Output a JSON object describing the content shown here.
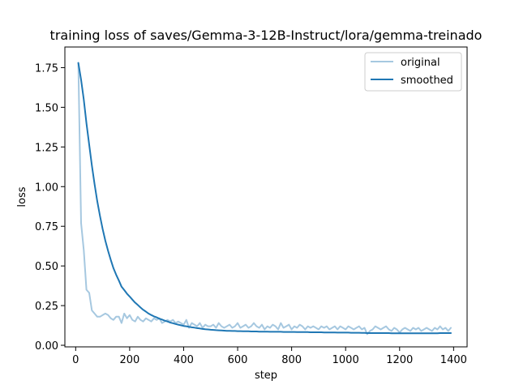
{
  "chart_data": {
    "type": "line",
    "title": "training loss of saves/Gemma-3-12B-Instruct/lora/gemma-treinado",
    "xlabel": "step",
    "ylabel": "loss",
    "xlim": [
      -40,
      1450
    ],
    "ylim": [
      -0.01,
      1.88
    ],
    "xticks": [
      0,
      200,
      400,
      600,
      800,
      1000,
      1200,
      1400
    ],
    "xtick_labels": [
      "0",
      "200",
      "400",
      "600",
      "800",
      "1000",
      "1200",
      "1400"
    ],
    "yticks": [
      0.0,
      0.25,
      0.5,
      0.75,
      1.0,
      1.25,
      1.5,
      1.75
    ],
    "ytick_labels": [
      "0.00",
      "0.25",
      "0.50",
      "0.75",
      "1.00",
      "1.25",
      "1.50",
      "1.75"
    ],
    "grid": false,
    "legend_position": "top-right",
    "series": [
      {
        "name": "original",
        "color": "#a6c8e0",
        "x": [
          10,
          20,
          30,
          40,
          50,
          60,
          70,
          80,
          90,
          100,
          110,
          120,
          130,
          140,
          150,
          160,
          170,
          180,
          190,
          200,
          210,
          220,
          230,
          240,
          250,
          260,
          270,
          280,
          290,
          300,
          310,
          320,
          330,
          340,
          350,
          360,
          370,
          380,
          390,
          400,
          410,
          420,
          430,
          440,
          450,
          460,
          470,
          480,
          490,
          500,
          510,
          520,
          530,
          540,
          550,
          560,
          570,
          580,
          590,
          600,
          610,
          620,
          630,
          640,
          650,
          660,
          670,
          680,
          690,
          700,
          710,
          720,
          730,
          740,
          750,
          760,
          770,
          780,
          790,
          800,
          810,
          820,
          830,
          840,
          850,
          860,
          870,
          880,
          890,
          900,
          910,
          920,
          930,
          940,
          950,
          960,
          970,
          980,
          990,
          1000,
          1010,
          1020,
          1030,
          1040,
          1050,
          1060,
          1070,
          1080,
          1090,
          1100,
          1110,
          1120,
          1130,
          1140,
          1150,
          1160,
          1170,
          1180,
          1190,
          1200,
          1210,
          1220,
          1230,
          1240,
          1250,
          1260,
          1270,
          1280,
          1290,
          1300,
          1310,
          1320,
          1330,
          1340,
          1350,
          1360,
          1370,
          1380,
          1390
        ],
        "values": [
          1.78,
          0.77,
          0.6,
          0.35,
          0.33,
          0.22,
          0.2,
          0.18,
          0.18,
          0.19,
          0.2,
          0.19,
          0.17,
          0.16,
          0.18,
          0.18,
          0.14,
          0.2,
          0.17,
          0.19,
          0.16,
          0.15,
          0.18,
          0.16,
          0.15,
          0.17,
          0.16,
          0.15,
          0.17,
          0.16,
          0.17,
          0.14,
          0.15,
          0.16,
          0.15,
          0.16,
          0.14,
          0.15,
          0.14,
          0.13,
          0.16,
          0.11,
          0.14,
          0.13,
          0.12,
          0.14,
          0.11,
          0.13,
          0.12,
          0.12,
          0.13,
          0.11,
          0.14,
          0.12,
          0.11,
          0.12,
          0.13,
          0.11,
          0.12,
          0.14,
          0.11,
          0.12,
          0.13,
          0.11,
          0.12,
          0.14,
          0.12,
          0.11,
          0.13,
          0.1,
          0.12,
          0.11,
          0.13,
          0.12,
          0.1,
          0.14,
          0.11,
          0.12,
          0.13,
          0.1,
          0.12,
          0.11,
          0.13,
          0.12,
          0.1,
          0.12,
          0.11,
          0.12,
          0.11,
          0.1,
          0.12,
          0.11,
          0.12,
          0.1,
          0.11,
          0.12,
          0.1,
          0.12,
          0.11,
          0.1,
          0.12,
          0.11,
          0.1,
          0.11,
          0.12,
          0.1,
          0.11,
          0.07,
          0.09,
          0.1,
          0.12,
          0.11,
          0.1,
          0.11,
          0.12,
          0.1,
          0.09,
          0.11,
          0.1,
          0.08,
          0.1,
          0.11,
          0.1,
          0.09,
          0.11,
          0.1,
          0.11,
          0.09,
          0.1,
          0.11,
          0.1,
          0.09,
          0.11,
          0.1,
          0.12,
          0.1,
          0.11,
          0.09,
          0.11
        ]
      },
      {
        "name": "smoothed",
        "color": "#1f77b4",
        "x": [
          10,
          20,
          30,
          40,
          50,
          60,
          70,
          80,
          90,
          100,
          110,
          120,
          130,
          140,
          150,
          160,
          170,
          180,
          190,
          200,
          210,
          220,
          230,
          240,
          250,
          260,
          270,
          280,
          290,
          300,
          310,
          320,
          330,
          340,
          350,
          360,
          370,
          380,
          390,
          400,
          410,
          420,
          430,
          440,
          450,
          460,
          470,
          480,
          490,
          500,
          510,
          520,
          530,
          540,
          550,
          560,
          570,
          580,
          590,
          600,
          610,
          620,
          630,
          640,
          650,
          660,
          670,
          680,
          690,
          700,
          710,
          720,
          730,
          740,
          750,
          760,
          770,
          780,
          790,
          800,
          810,
          820,
          830,
          840,
          850,
          860,
          870,
          880,
          890,
          900,
          910,
          920,
          930,
          940,
          950,
          960,
          970,
          980,
          990,
          1000,
          1010,
          1020,
          1030,
          1040,
          1050,
          1060,
          1070,
          1080,
          1090,
          1100,
          1110,
          1120,
          1130,
          1140,
          1150,
          1160,
          1170,
          1180,
          1190,
          1200,
          1210,
          1220,
          1230,
          1240,
          1250,
          1260,
          1270,
          1280,
          1290,
          1300,
          1310,
          1320,
          1330,
          1340,
          1350,
          1360,
          1370,
          1380,
          1390
        ],
        "values": [
          1.78,
          1.673,
          1.549,
          1.4,
          1.264,
          1.133,
          1.016,
          0.909,
          0.815,
          0.732,
          0.659,
          0.595,
          0.538,
          0.486,
          0.445,
          0.408,
          0.369,
          0.348,
          0.325,
          0.307,
          0.288,
          0.269,
          0.254,
          0.238,
          0.224,
          0.212,
          0.2,
          0.191,
          0.182,
          0.176,
          0.168,
          0.162,
          0.155,
          0.15,
          0.143,
          0.139,
          0.134,
          0.13,
          0.126,
          0.122,
          0.12,
          0.116,
          0.113,
          0.111,
          0.108,
          0.106,
          0.103,
          0.101,
          0.1,
          0.098,
          0.097,
          0.095,
          0.094,
          0.093,
          0.092,
          0.091,
          0.091,
          0.09,
          0.09,
          0.089,
          0.089,
          0.088,
          0.088,
          0.088,
          0.087,
          0.087,
          0.087,
          0.086,
          0.086,
          0.086,
          0.086,
          0.085,
          0.085,
          0.085,
          0.085,
          0.085,
          0.084,
          0.084,
          0.084,
          0.084,
          0.084,
          0.083,
          0.083,
          0.083,
          0.083,
          0.083,
          0.082,
          0.082,
          0.082,
          0.082,
          0.082,
          0.081,
          0.081,
          0.081,
          0.081,
          0.081,
          0.08,
          0.08,
          0.08,
          0.08,
          0.08,
          0.079,
          0.079,
          0.079,
          0.079,
          0.078,
          0.078,
          0.077,
          0.077,
          0.077,
          0.077,
          0.077,
          0.077,
          0.077,
          0.077,
          0.077,
          0.076,
          0.076,
          0.076,
          0.076,
          0.076,
          0.076,
          0.076,
          0.076,
          0.076,
          0.076,
          0.076,
          0.076,
          0.076,
          0.076,
          0.076,
          0.076,
          0.076,
          0.076,
          0.077,
          0.077,
          0.077,
          0.077,
          0.077
        ]
      }
    ]
  }
}
